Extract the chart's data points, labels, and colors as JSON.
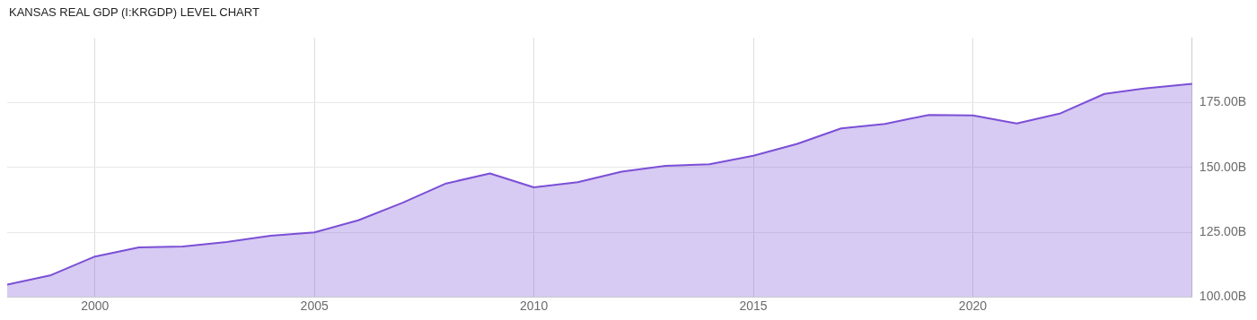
{
  "chart_data": {
    "type": "area",
    "title": "KANSAS REAL GDP (I:KRGDP) LEVEL CHART",
    "x": [
      1998,
      1999,
      2000,
      2001,
      2002,
      2003,
      2004,
      2005,
      2006,
      2007,
      2008,
      2009,
      2010,
      2011,
      2012,
      2013,
      2014,
      2015,
      2016,
      2017,
      2018,
      2019,
      2020,
      2021,
      2022,
      2023,
      2024,
      2025
    ],
    "series": [
      {
        "color": "#7b4fd6",
        "values": [
          104.7,
          108.4,
          115.6,
          119.1,
          119.5,
          121.2,
          123.6,
          124.9,
          129.6,
          136.3,
          143.8,
          147.7,
          142.3,
          144.3,
          148.4,
          150.6,
          151.2,
          154.5,
          159.1,
          165.1,
          166.8,
          170.3,
          170.1,
          167.0,
          170.9,
          178.4,
          180.7,
          182.3
        ]
      }
    ],
    "xlim": [
      1998,
      2025
    ],
    "xticks": [
      2000,
      2005,
      2010,
      2015,
      2020
    ],
    "ylim": [
      100,
      200
    ],
    "yticks": [
      {
        "value": 100,
        "label": "100.00B"
      },
      {
        "value": 125,
        "label": "125.00B"
      },
      {
        "value": 150,
        "label": "150.00B"
      },
      {
        "value": 175,
        "label": "175.00B"
      }
    ],
    "grid": true,
    "legend": false,
    "marker": "none"
  }
}
